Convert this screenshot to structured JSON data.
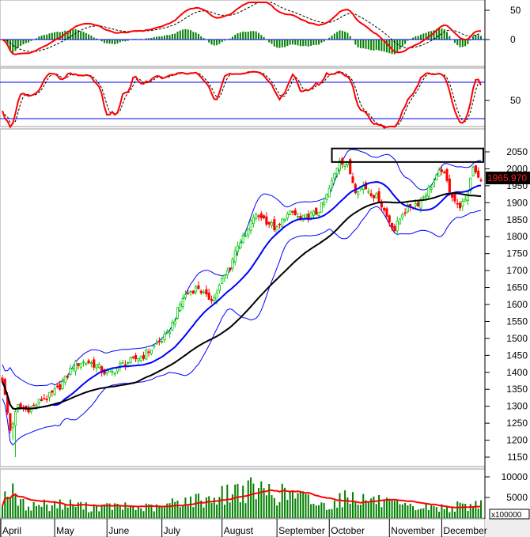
{
  "chart_data": {
    "type": "candlestick",
    "title": "",
    "months": [
      "April",
      "May",
      "June",
      "July",
      "August",
      "September",
      "October",
      "November",
      "December"
    ],
    "month_start_index": [
      0,
      20,
      40,
      61,
      84,
      105,
      125,
      148,
      168
    ],
    "price": {
      "ticks": [
        2050,
        2000,
        1950,
        1900,
        1850,
        1800,
        1750,
        1700,
        1650,
        1600,
        1550,
        1500,
        1450,
        1400,
        1350,
        1300,
        1250,
        1200,
        1150
      ],
      "ylim": [
        1130,
        2080
      ],
      "closes": [
        1380,
        1230,
        1300,
        1290,
        1300,
        1320,
        1330,
        1350,
        1380,
        1420,
        1430,
        1430,
        1420,
        1400,
        1400,
        1420,
        1430,
        1440,
        1450,
        1470,
        1490,
        1510,
        1560,
        1620,
        1640,
        1650,
        1620,
        1620,
        1670,
        1710,
        1780,
        1800,
        1860,
        1860,
        1840,
        1820,
        1860,
        1870,
        1850,
        1860,
        1870,
        1900,
        1960,
        2030,
        2010,
        1940,
        1950,
        1930,
        1910,
        1860,
        1820,
        1870,
        1890,
        1900,
        1930,
        1960,
        2000,
        1940,
        1890,
        1900,
        2010,
        1966
      ],
      "last_price_label": "1965.970",
      "up_color": "#00cc00",
      "down_color": "#ff0000",
      "ma_short_color": "#0000ff",
      "ma_long_color": "#000000",
      "bands_color": "#0000ff",
      "resistance_zone": {
        "price_low": 2020,
        "price_high": 2060,
        "start_index": 42,
        "end_index": 61
      }
    },
    "macd": {
      "ticks": [
        "50",
        "0"
      ],
      "tick_values": [
        50,
        0
      ],
      "line_color": "#ff0000",
      "signal_color": "#000000",
      "hist_color": "#008000"
    },
    "oscillator": {
      "ticks": [
        "50"
      ],
      "tick_values": [
        50
      ],
      "levels": [
        80,
        20
      ],
      "line_color": "#ff0000"
    },
    "volume": {
      "ticks": [
        "10000",
        "5000"
      ],
      "tick_values": [
        10000,
        5000
      ],
      "unit_label": "x100000",
      "values": [
        5000,
        7000,
        4000,
        3000,
        3000,
        3500,
        3000,
        3500,
        3000,
        3500,
        3000,
        2500,
        3000,
        2500,
        3000,
        2500,
        2800,
        2500,
        2500,
        2600,
        2400,
        3000,
        4000,
        4500,
        4000,
        4500,
        4500,
        5000,
        5500,
        6000,
        7000,
        6500,
        7000,
        6500,
        6500,
        5500,
        6000,
        5500,
        5000,
        4500,
        3500,
        3000,
        3500,
        4500,
        5000,
        5500,
        4500,
        4500,
        4000,
        3500,
        3000,
        2800,
        2500,
        2500,
        2500,
        2500,
        2500,
        2500,
        2800,
        2800,
        3000,
        4000
      ],
      "bar_color": "#008000",
      "ma_color": "#ff0000"
    }
  }
}
